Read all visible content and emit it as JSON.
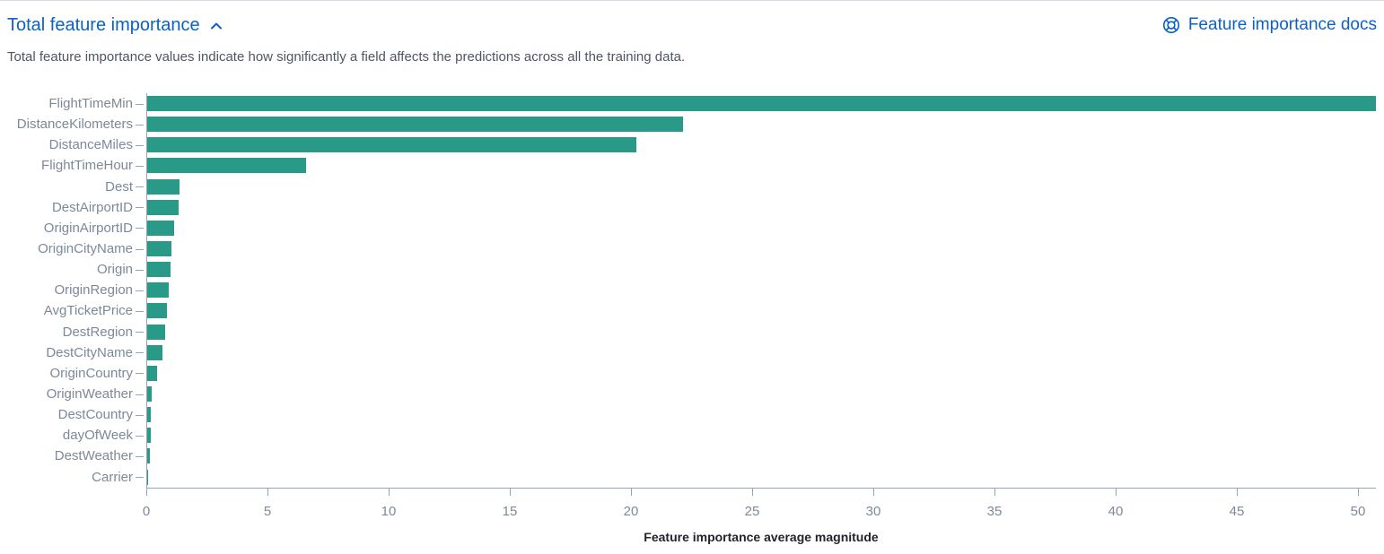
{
  "header": {
    "title": "Total feature importance",
    "docs_link_label": "Feature importance docs",
    "subtitle": "Total feature importance values indicate how significantly a field affects the predictions across all the training data.",
    "collapse_icon": "chevron-up-icon",
    "docs_icon": "life-ring-icon"
  },
  "colors": {
    "accent_blue": "#0b61c6",
    "bar_teal": "#2a9a88",
    "axis_line": "#98a2b3",
    "axis_label_gray": "#7d8899",
    "axis_title_dark": "#22242a"
  },
  "chart_data": {
    "type": "bar",
    "orientation": "horizontal",
    "title": "Total feature importance",
    "xlabel": "Feature importance average magnitude",
    "ylabel": "",
    "categories": [
      "FlightTimeMin",
      "DistanceKilometers",
      "DistanceMiles",
      "FlightTimeHour",
      "Dest",
      "DestAirportID",
      "OriginAirportID",
      "OriginCityName",
      "Origin",
      "OriginRegion",
      "AvgTicketPrice",
      "DestRegion",
      "DestCityName",
      "OriginCountry",
      "OriginWeather",
      "DestCountry",
      "dayOfWeek",
      "DestWeather",
      "Carrier"
    ],
    "values": [
      50.7,
      22.1,
      20.2,
      6.55,
      1.35,
      1.3,
      1.1,
      1.0,
      0.97,
      0.9,
      0.82,
      0.75,
      0.62,
      0.41,
      0.17,
      0.16,
      0.15,
      0.12,
      0.05
    ],
    "x_ticks": [
      0,
      5,
      10,
      15,
      20,
      25,
      30,
      35,
      40,
      45,
      50
    ],
    "xlim": [
      0,
      50.7
    ],
    "grid": false,
    "legend": "none",
    "bar_color": "#2a9a88"
  }
}
